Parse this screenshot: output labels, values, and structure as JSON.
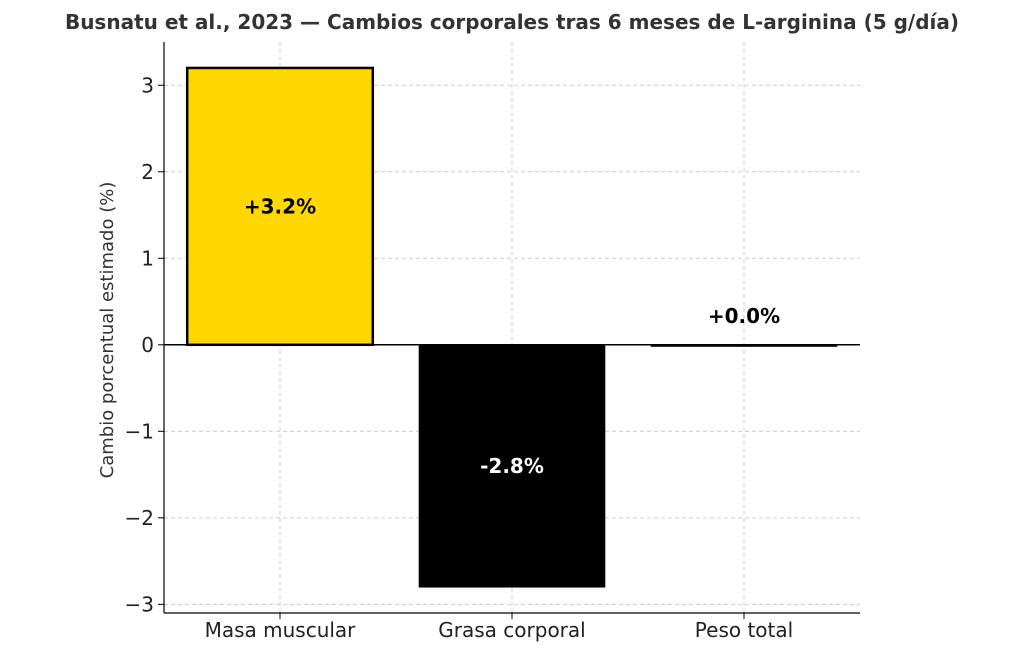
{
  "chart_data": {
    "type": "bar",
    "title": "Busnatu et al., 2023 — Cambios corporales tras 6 meses de L-arginina (5 g/día)",
    "xlabel": "",
    "ylabel": "Cambio porcentual estimado (%)",
    "categories": [
      "Masa muscular",
      "Grasa corporal",
      "Peso total"
    ],
    "values": [
      3.2,
      -2.8,
      0.0
    ],
    "data_labels": [
      "+3.2%",
      "-2.8%",
      "+0.0%"
    ],
    "bar_colors": [
      "#FFD700",
      "#000000",
      "#000000"
    ],
    "label_colors": [
      "#000000",
      "#ffffff",
      "#000000"
    ],
    "ylim": [
      -3.1,
      3.5
    ],
    "yticks": [
      3,
      2,
      1,
      0,
      -1,
      -2,
      -3
    ],
    "ytick_labels": [
      "3",
      "2",
      "1",
      "0",
      "−1",
      "−2",
      "−3"
    ],
    "grid": true
  }
}
